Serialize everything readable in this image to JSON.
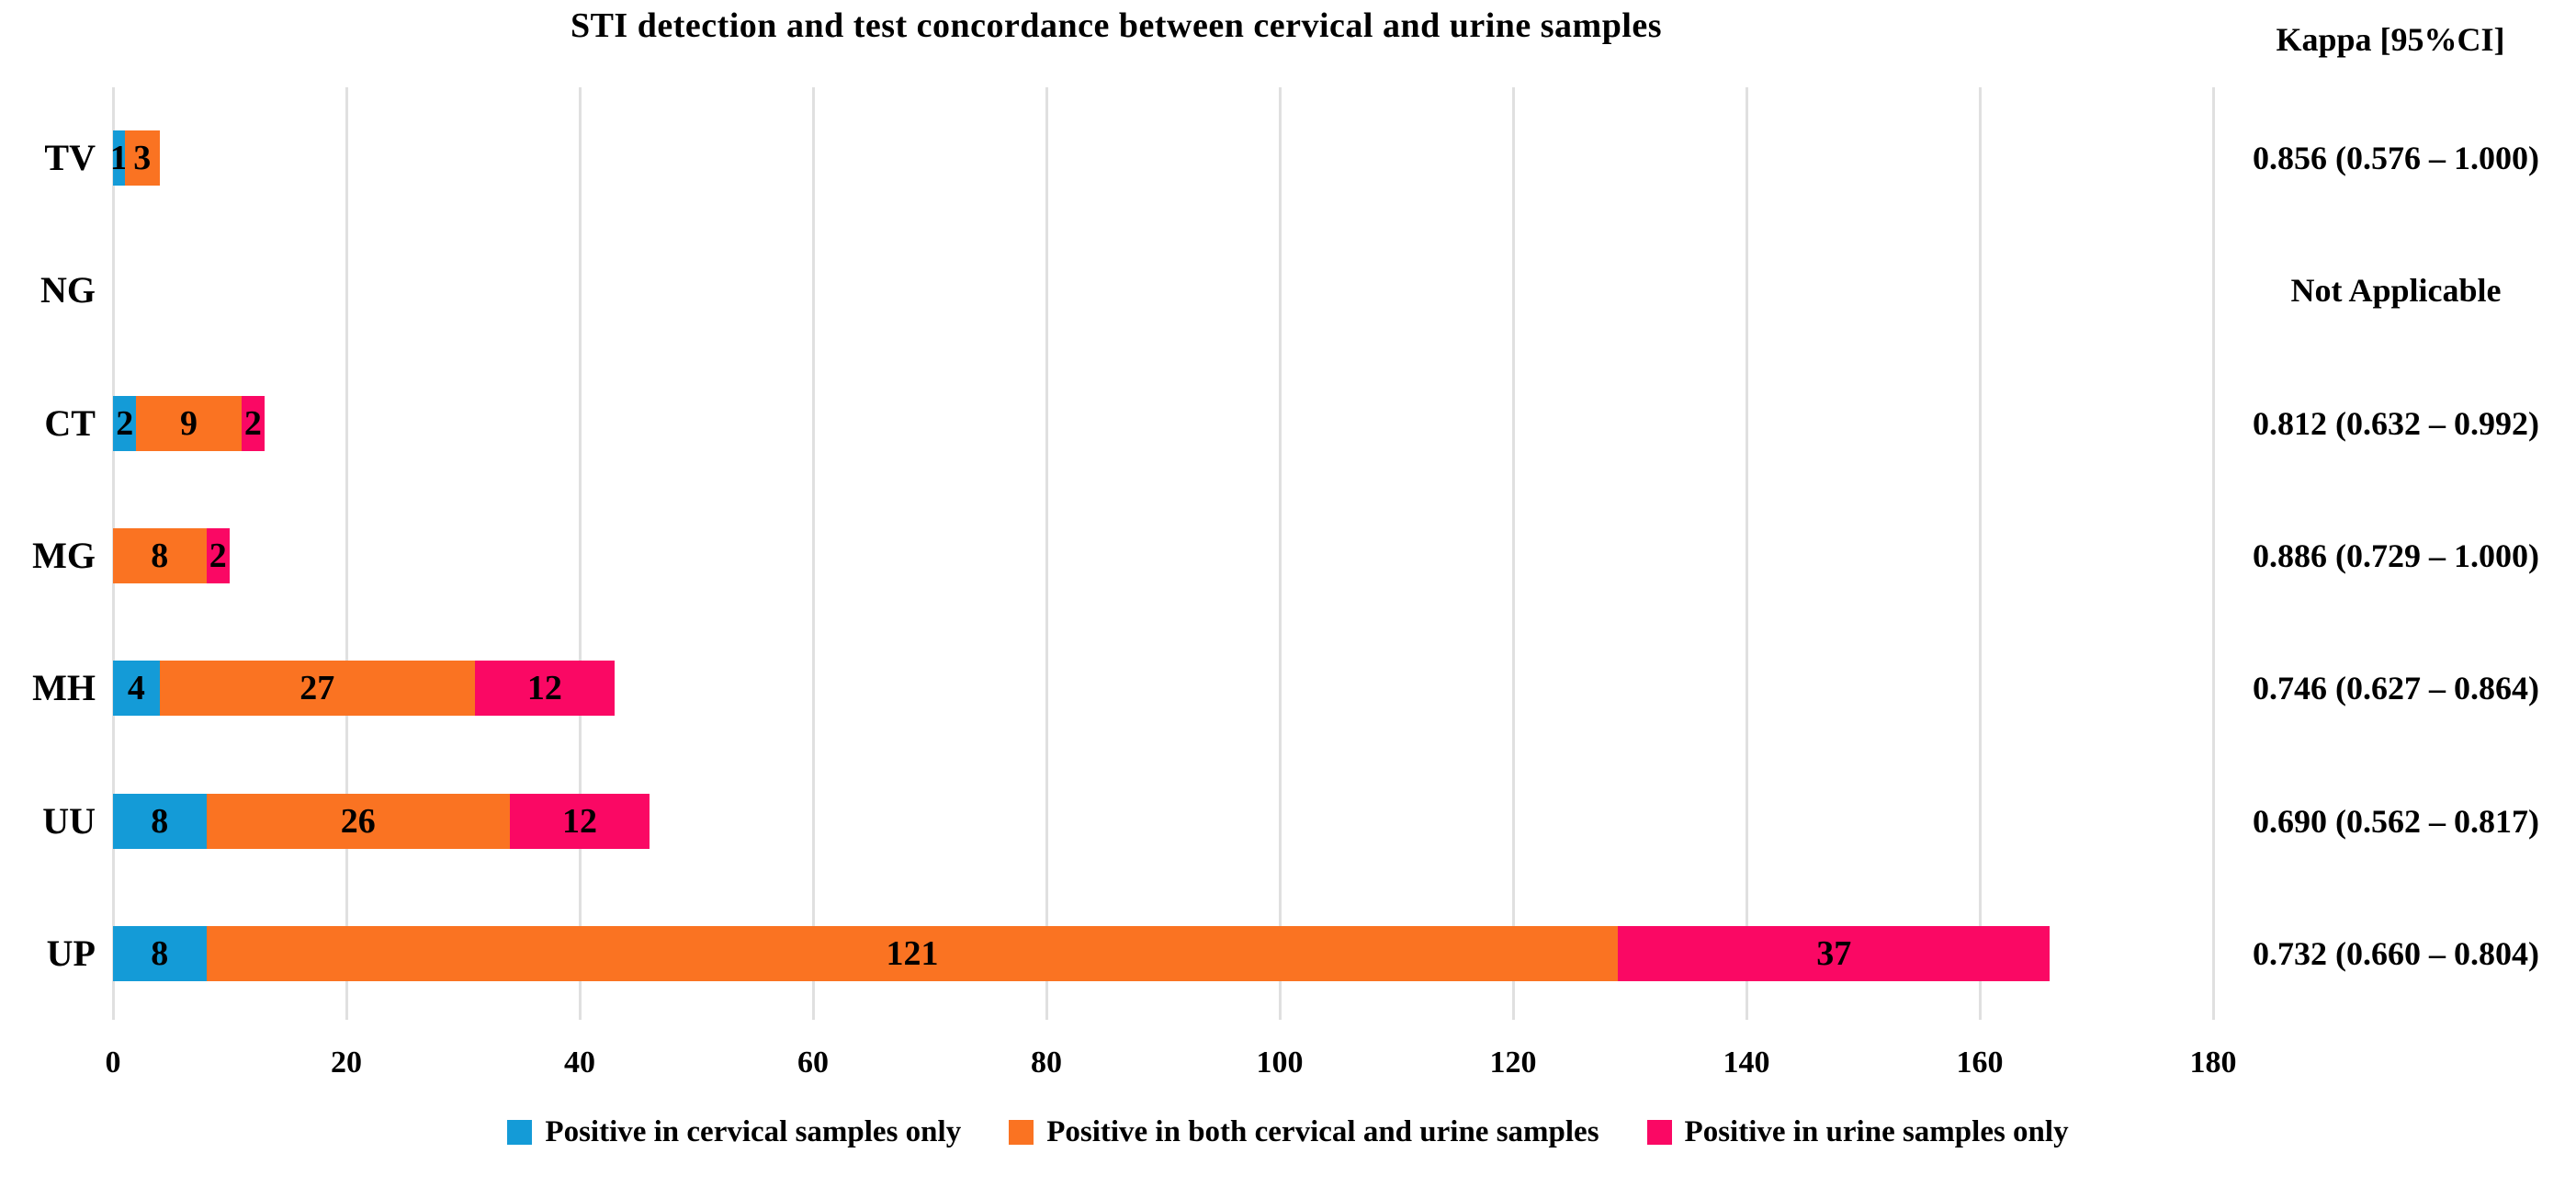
{
  "chart_data": {
    "type": "bar",
    "orientation": "horizontal",
    "title": "STI detection and test concordance between cervical and urine samples",
    "categories": [
      "TV",
      "NG",
      "CT",
      "MG",
      "MH",
      "UU",
      "UP"
    ],
    "series": [
      {
        "name": "Positive in cervical samples only",
        "color": "#149BD7",
        "values": [
          1,
          0,
          2,
          0,
          4,
          8,
          8
        ]
      },
      {
        "name": "Positive in both cervical and urine samples",
        "color": "#FA7322",
        "values": [
          3,
          0,
          9,
          8,
          27,
          26,
          121
        ]
      },
      {
        "name": "Positive in urine samples only",
        "color": "#FA0864",
        "values": [
          0,
          0,
          2,
          2,
          12,
          12,
          37
        ]
      }
    ],
    "xlim": [
      0,
      180
    ],
    "x_ticks": [
      0,
      20,
      40,
      60,
      80,
      100,
      120,
      140,
      160,
      180
    ],
    "grid": true,
    "legend_position": "bottom",
    "bar_label_color": "#000000",
    "gridline_color": "#e0e0e0"
  },
  "kappa": {
    "header": "Kappa [95%CI]",
    "values": [
      "0.856 (0.576 – 1.000)",
      "Not Applicable",
      "0.812 (0.632 – 0.992)",
      "0.886 (0.729 – 1.000)",
      "0.746 (0.627 – 0.864)",
      "0.690 (0.562 – 0.817)",
      "0.732 (0.660 – 0.804)"
    ]
  }
}
